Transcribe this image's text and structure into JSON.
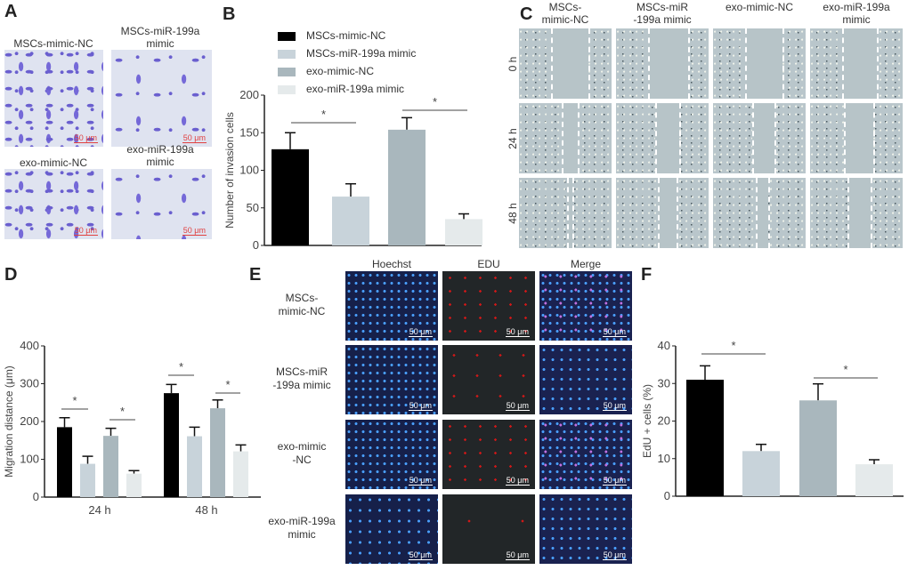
{
  "panels": {
    "A": "A",
    "B": "B",
    "C": "C",
    "D": "D",
    "E": "E",
    "F": "F"
  },
  "groups": [
    "MSCs-mimic-NC",
    "MSCs-miR-199a mimic",
    "exo-mimic-NC",
    "exo-miR-199a mimic"
  ],
  "colors": [
    "#000000",
    "#c8d3da",
    "#a9b7bd",
    "#e5eaeb"
  ],
  "panel_a": {
    "captions": [
      [
        "MSCs-mimic-NC"
      ],
      [
        "MSCs-miR-199a",
        "mimic"
      ],
      [
        "exo-mimic-NC"
      ],
      [
        "exo-miR-199a",
        "mimic"
      ]
    ],
    "scale_bar": "50 μm"
  },
  "panel_c": {
    "columns": [
      [
        "MSCs-",
        "mimic-NC"
      ],
      [
        "MSCs-miR",
        "-199a mimic"
      ],
      [
        "exo-mimic-NC"
      ],
      [
        "exo-miR-199a",
        "mimic"
      ]
    ],
    "rows": [
      "0 h",
      "24 h",
      "48 h"
    ]
  },
  "panel_e": {
    "columns": [
      "Hoechst",
      "EDU",
      "Merge"
    ],
    "rows": [
      [
        "MSCs-",
        "mimic-NC"
      ],
      [
        "MSCs-miR",
        "-199a mimic"
      ],
      [
        "exo-mimic",
        "-NC"
      ],
      [
        "exo-miR-199a",
        "mimic"
      ]
    ],
    "scale_bar": "50 μm"
  },
  "chart_data": [
    {
      "panel": "B",
      "type": "bar",
      "categories": [
        "MSCs-mimic-NC",
        "MSCs-miR-199a mimic",
        "exo-mimic-NC",
        "exo-miR-199a mimic"
      ],
      "values": [
        128,
        65,
        154,
        35
      ],
      "errors": [
        22,
        17,
        16,
        7
      ],
      "ylabel": "Number of invasion cells",
      "ylim": [
        0,
        200
      ],
      "yticks": [
        "0",
        "50",
        "100",
        "150",
        "200"
      ],
      "legend": [
        "MSCs-mimic-NC",
        "MSCs-miR-199a mimic",
        "exo-mimic-NC",
        "exo-miR-199a mimic"
      ],
      "legend_placement": "top",
      "significance": [
        {
          "pair": [
            0,
            1
          ],
          "label": "*"
        },
        {
          "pair": [
            2,
            3
          ],
          "label": "*"
        }
      ]
    },
    {
      "panel": "D",
      "type": "bar",
      "categories": [
        "24 h",
        "48 h"
      ],
      "series": [
        {
          "values": [
            185,
            275
          ],
          "errors": [
            25,
            23
          ]
        },
        {
          "values": [
            88,
            161
          ],
          "errors": [
            20,
            24
          ]
        },
        {
          "values": [
            162,
            235
          ],
          "errors": [
            20,
            22
          ]
        },
        {
          "values": [
            62,
            121
          ],
          "errors": [
            8,
            17
          ]
        }
      ],
      "ylabel": "Migration distance (μm)",
      "ylim": [
        0,
        400
      ],
      "yticks": [
        "0",
        "100",
        "200",
        "300",
        "400"
      ],
      "significance": [
        {
          "category": 0,
          "pair": [
            0,
            1
          ],
          "label": "*"
        },
        {
          "category": 0,
          "pair": [
            2,
            3
          ],
          "label": "*"
        },
        {
          "category": 1,
          "pair": [
            0,
            1
          ],
          "label": "*"
        },
        {
          "category": 1,
          "pair": [
            2,
            3
          ],
          "label": "*"
        }
      ]
    },
    {
      "panel": "F",
      "type": "bar",
      "categories": [
        "MSCs-mimic-NC",
        "MSCs-miR-199a mimic",
        "exo-mimic-NC",
        "exo-miR-199a mimic"
      ],
      "values": [
        31,
        12,
        25.5,
        8.5
      ],
      "errors": [
        3.7,
        1.8,
        4.4,
        1.2
      ],
      "ylabel": "EdU + cells (%)",
      "ylim": [
        0,
        40
      ],
      "yticks": [
        "0",
        "10",
        "20",
        "30",
        "40"
      ],
      "significance": [
        {
          "pair": [
            0,
            1
          ],
          "label": "*"
        },
        {
          "pair": [
            2,
            3
          ],
          "label": "*"
        }
      ]
    }
  ]
}
